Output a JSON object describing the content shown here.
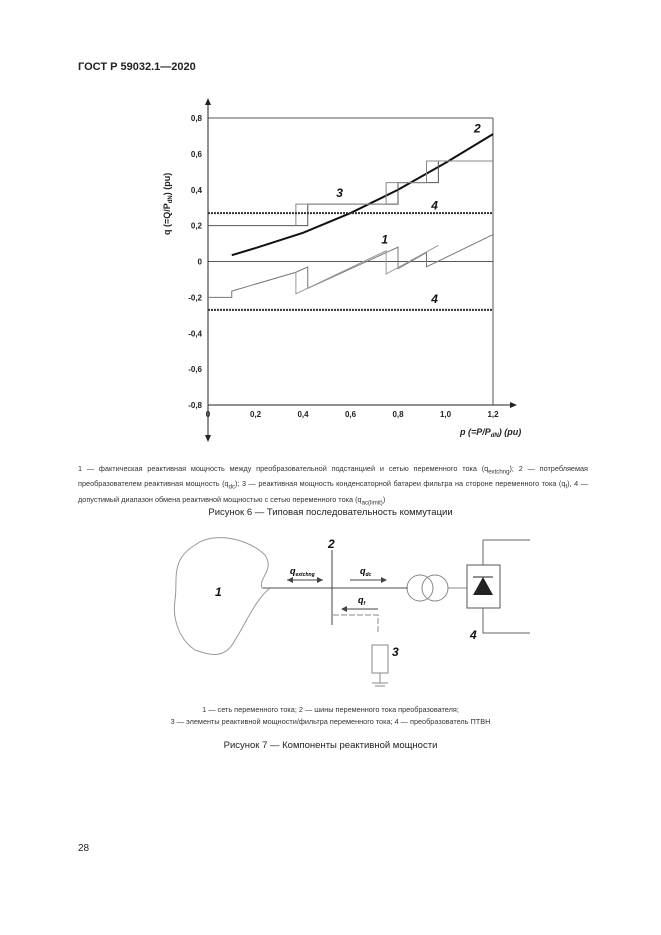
{
  "header": {
    "doc_id": "ГОСТ Р 59032.1—2020"
  },
  "figure6": {
    "legend_parts": [
      "1 — фактическая реактивная мощность между преобразовательной подстанцией и сетью переменного тока (q",
      "extchng",
      "); 2 — потребляемая преобразователем реактивная мощность (q",
      "dc",
      "); 3 — реактивная мощность конденсаторной батареи фильтра на стороне переменного тока (q",
      "f",
      "), 4 — допустимый диапазон обмена реактивной мощностью с сетью переменного тока (q",
      "ac(limit)",
      ")"
    ],
    "caption": "Рисунок 6 — Типовая последовательность коммутации"
  },
  "chart_data": {
    "type": "line",
    "xlabel": "p (=P/P",
    "xlabel_sub": "dN",
    "xlabel_unit": ") (pu)",
    "ylabel": "q (=Q/P",
    "ylabel_sub": "dN",
    "ylabel_unit": ") (pu)",
    "xlim": [
      0,
      1.2
    ],
    "ylim": [
      -0.8,
      0.8
    ],
    "xticks": [
      "0",
      "0,2",
      "0,4",
      "0,6",
      "0,8",
      "1,0",
      "1,2"
    ],
    "xtick_values": [
      0,
      0.2,
      0.4,
      0.6,
      0.8,
      1.0,
      1.2
    ],
    "yticks": [
      "0,8",
      "0,6",
      "0,4",
      "0,2",
      "0",
      "-0,2",
      "-0,4",
      "-0,6",
      "-0,8"
    ],
    "ytick_values": [
      0.8,
      0.6,
      0.4,
      0.2,
      0,
      -0.2,
      -0.4,
      -0.6,
      -0.8
    ],
    "series": [
      {
        "label": "1",
        "x": [
          0,
          0.1,
          0.1,
          0.37,
          0.42,
          0.42,
          0.8,
          0.8,
          0.92,
          0.92,
          1.2
        ],
        "y": [
          -0.2,
          -0.2,
          -0.165,
          -0.06,
          -0.03,
          -0.15,
          0.08,
          -0.04,
          0.05,
          -0.03,
          0.15
        ],
        "color": "#777"
      },
      {
        "label": "1",
        "x": [
          0.37,
          0.37,
          0.75,
          0.75,
          0.97
        ],
        "y": [
          -0.06,
          -0.18,
          0.06,
          -0.07,
          0.09
        ],
        "color": "#999"
      },
      {
        "label": "2",
        "x": [
          0.1,
          0.2,
          0.4,
          0.6,
          0.8,
          1.0,
          1.2
        ],
        "y": [
          0.035,
          0.075,
          0.16,
          0.27,
          0.4,
          0.55,
          0.71
        ],
        "color": "#111"
      },
      {
        "label": "3",
        "x": [
          0,
          0.42,
          0.42,
          0.8,
          0.8,
          0.97,
          0.97
        ],
        "y": [
          0.2,
          0.2,
          0.32,
          0.32,
          0.44,
          0.44,
          0.56
        ],
        "color": "#555"
      },
      {
        "label": "3",
        "x": [
          0.37,
          0.37,
          0.75,
          0.75,
          0.92,
          0.92,
          1.2
        ],
        "y": [
          0.2,
          0.32,
          0.32,
          0.44,
          0.44,
          0.56,
          0.56
        ],
        "color": "#888"
      },
      {
        "label": "4",
        "x": [
          0,
          1.2
        ],
        "y": [
          0.27,
          0.27
        ],
        "color": "#333",
        "dashed": true
      },
      {
        "label": "4",
        "x": [
          0,
          1.2
        ],
        "y": [
          -0.27,
          -0.27
        ],
        "color": "#333",
        "dashed": true
      }
    ],
    "series_labels": [
      {
        "text": "1",
        "x": 0.73,
        "y": 0.1
      },
      {
        "text": "2",
        "x": 1.12,
        "y": 0.72
      },
      {
        "text": "3",
        "x": 0.54,
        "y": 0.36
      },
      {
        "text": "4",
        "x": 0.94,
        "y": 0.29
      },
      {
        "text": "4",
        "x": 0.94,
        "y": -0.23
      }
    ]
  },
  "figure7": {
    "labels": {
      "n1": "1",
      "n2": "2",
      "n3": "3",
      "n4": "4",
      "q_ext": "q",
      "q_ext_sub": "extchng",
      "q_dc": "q",
      "q_dc_sub": "dc",
      "q_f": "q",
      "q_f_sub": "f"
    },
    "legend_line1": "1 — сеть переменного тока; 2 — шины переменного тока преобразователя;",
    "legend_line2": "3 — элементы реактивной мощности/фильтра переменного тока; 4 — преобразователь ПТВН",
    "caption": "Рисунок 7 — Компоненты реактивной мощности"
  },
  "footer": {
    "page_number": "28"
  }
}
